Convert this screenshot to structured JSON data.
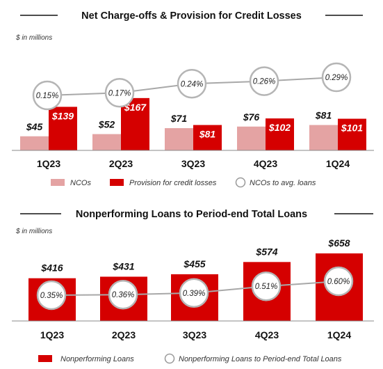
{
  "chart_data": [
    {
      "type": "bar",
      "title": "Net Charge-offs & Provision for Credit Losses",
      "units": "$ in millions",
      "categories": [
        "1Q23",
        "2Q23",
        "3Q23",
        "4Q23",
        "1Q24"
      ],
      "series": [
        {
          "name": "NCOs",
          "values": [
            45,
            52,
            71,
            76,
            81
          ],
          "labels": [
            "$45",
            "$52",
            "$71",
            "$76",
            "$81"
          ],
          "color": "#e4a3a3"
        },
        {
          "name": "Provision for credit losses",
          "values": [
            139,
            167,
            81,
            102,
            101
          ],
          "labels": [
            "$139",
            "$167",
            "$81",
            "$102",
            "$101"
          ],
          "color": "#d50000"
        }
      ],
      "line": {
        "name": "NCOs to avg. loans",
        "values": [
          0.15,
          0.17,
          0.24,
          0.26,
          0.29
        ],
        "labels": [
          "0.15%",
          "0.17%",
          "0.24%",
          "0.26%",
          "0.29%"
        ]
      },
      "legend": [
        "NCOs",
        "Provision for credit losses",
        "NCOs to avg. loans"
      ],
      "legend_position": "bottom",
      "grid": false
    },
    {
      "type": "bar",
      "title": "Nonperforming Loans to Period-end Total Loans",
      "units": "$ in millions",
      "categories": [
        "1Q23",
        "2Q23",
        "3Q23",
        "4Q23",
        "1Q24"
      ],
      "series": [
        {
          "name": "Nonperforming Loans",
          "values": [
            416,
            431,
            455,
            574,
            658
          ],
          "labels": [
            "$416",
            "$431",
            "$455",
            "$574",
            "$658"
          ],
          "color": "#d50000"
        }
      ],
      "line": {
        "name": "Nonperforming Loans to Period-end Total Loans",
        "values": [
          0.35,
          0.36,
          0.39,
          0.51,
          0.6
        ],
        "labels": [
          "0.35%",
          "0.36%",
          "0.39%",
          "0.51%",
          "0.60%"
        ]
      },
      "legend": [
        "Nonperforming Loans",
        "Nonperforming Loans to Period-end Total Loans"
      ],
      "legend_position": "bottom",
      "grid": false
    }
  ]
}
